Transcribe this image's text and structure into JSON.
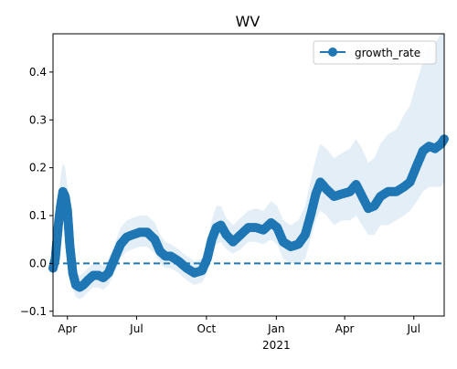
{
  "chart_data": {
    "type": "line",
    "title": "WV",
    "xlabel": "",
    "ylabel": "",
    "x_range": [
      "2020-03-13",
      "2021-08-10"
    ],
    "ylim": [
      -0.11,
      0.48
    ],
    "yticks": [
      -0.1,
      0.0,
      0.1,
      0.2,
      0.3,
      0.4
    ],
    "ytick_labels": [
      "−0.1",
      "0.0",
      "0.1",
      "0.2",
      "0.3",
      "0.4"
    ],
    "xticks": [
      {
        "date": "2020-04-01",
        "label": "Apr"
      },
      {
        "date": "2020-07-01",
        "label": "Jul"
      },
      {
        "date": "2020-10-01",
        "label": "Oct"
      },
      {
        "date": "2021-01-01",
        "label": "Jan"
      },
      {
        "date": "2021-04-01",
        "label": "Apr"
      },
      {
        "date": "2021-07-01",
        "label": "Jul"
      }
    ],
    "year_label": {
      "date": "2021-01-01",
      "label": "2021"
    },
    "grid": false,
    "legend": {
      "position": "top-right",
      "entries": [
        "growth_rate"
      ]
    },
    "colors": {
      "line": "#1f77b4",
      "band": "#1f77b4",
      "zero_line": "#1f77b4"
    },
    "reference_line": {
      "y": 0.0,
      "style": "dashed"
    },
    "series": [
      {
        "name": "growth_rate",
        "points": [
          [
            "2020-03-13",
            -0.01,
            -0.02,
            0.0
          ],
          [
            "2020-03-16",
            0.01,
            -0.01,
            0.03
          ],
          [
            "2020-03-20",
            0.08,
            0.04,
            0.12
          ],
          [
            "2020-03-23",
            0.12,
            0.07,
            0.18
          ],
          [
            "2020-03-26",
            0.15,
            0.1,
            0.21
          ],
          [
            "2020-03-29",
            0.14,
            0.09,
            0.2
          ],
          [
            "2020-04-01",
            0.11,
            0.06,
            0.16
          ],
          [
            "2020-04-04",
            0.04,
            0.0,
            0.09
          ],
          [
            "2020-04-08",
            -0.02,
            -0.05,
            0.02
          ],
          [
            "2020-04-12",
            -0.045,
            -0.07,
            -0.02
          ],
          [
            "2020-04-17",
            -0.05,
            -0.075,
            -0.025
          ],
          [
            "2020-04-22",
            -0.045,
            -0.07,
            -0.02
          ],
          [
            "2020-04-28",
            -0.035,
            -0.06,
            -0.01
          ],
          [
            "2020-05-05",
            -0.025,
            -0.05,
            0.0
          ],
          [
            "2020-05-12",
            -0.025,
            -0.05,
            0.0
          ],
          [
            "2020-05-18",
            -0.03,
            -0.055,
            -0.005
          ],
          [
            "2020-05-25",
            -0.02,
            -0.045,
            0.01
          ],
          [
            "2020-06-02",
            0.01,
            -0.02,
            0.04
          ],
          [
            "2020-06-10",
            0.04,
            0.01,
            0.075
          ],
          [
            "2020-06-18",
            0.055,
            0.025,
            0.09
          ],
          [
            "2020-06-26",
            0.06,
            0.03,
            0.095
          ],
          [
            "2020-07-05",
            0.065,
            0.035,
            0.1
          ],
          [
            "2020-07-15",
            0.065,
            0.035,
            0.1
          ],
          [
            "2020-07-25",
            0.05,
            0.02,
            0.085
          ],
          [
            "2020-08-01",
            0.025,
            0.0,
            0.06
          ],
          [
            "2020-08-08",
            0.015,
            -0.01,
            0.045
          ],
          [
            "2020-08-15",
            0.015,
            -0.01,
            0.04
          ],
          [
            "2020-08-25",
            0.005,
            -0.02,
            0.03
          ],
          [
            "2020-09-05",
            -0.01,
            -0.035,
            0.015
          ],
          [
            "2020-09-15",
            -0.02,
            -0.045,
            0.005
          ],
          [
            "2020-09-25",
            -0.015,
            -0.04,
            0.01
          ],
          [
            "2020-10-02",
            0.01,
            -0.02,
            0.045
          ],
          [
            "2020-10-08",
            0.05,
            0.02,
            0.09
          ],
          [
            "2020-10-14",
            0.075,
            0.04,
            0.12
          ],
          [
            "2020-10-20",
            0.08,
            0.045,
            0.12
          ],
          [
            "2020-10-27",
            0.06,
            0.03,
            0.095
          ],
          [
            "2020-11-05",
            0.045,
            0.02,
            0.08
          ],
          [
            "2020-11-15",
            0.06,
            0.03,
            0.095
          ],
          [
            "2020-11-25",
            0.075,
            0.045,
            0.11
          ],
          [
            "2020-12-05",
            0.075,
            0.045,
            0.115
          ],
          [
            "2020-12-15",
            0.07,
            0.04,
            0.11
          ],
          [
            "2020-12-25",
            0.085,
            0.05,
            0.13
          ],
          [
            "2021-01-02",
            0.075,
            0.04,
            0.12
          ],
          [
            "2021-01-10",
            0.045,
            0.01,
            0.09
          ],
          [
            "2021-01-20",
            0.035,
            0.0,
            0.08
          ],
          [
            "2021-01-30",
            0.04,
            0.0,
            0.09
          ],
          [
            "2021-02-08",
            0.06,
            0.01,
            0.12
          ],
          [
            "2021-02-15",
            0.1,
            0.05,
            0.17
          ],
          [
            "2021-02-22",
            0.145,
            0.09,
            0.22
          ],
          [
            "2021-02-28",
            0.17,
            0.11,
            0.25
          ],
          [
            "2021-03-08",
            0.155,
            0.1,
            0.24
          ],
          [
            "2021-03-18",
            0.14,
            0.08,
            0.22
          ],
          [
            "2021-03-28",
            0.145,
            0.09,
            0.23
          ],
          [
            "2021-04-08",
            0.15,
            0.09,
            0.24
          ],
          [
            "2021-04-16",
            0.165,
            0.1,
            0.26
          ],
          [
            "2021-04-24",
            0.14,
            0.08,
            0.24
          ],
          [
            "2021-05-02",
            0.115,
            0.06,
            0.21
          ],
          [
            "2021-05-10",
            0.12,
            0.06,
            0.22
          ],
          [
            "2021-05-18",
            0.14,
            0.08,
            0.25
          ],
          [
            "2021-05-28",
            0.15,
            0.08,
            0.27
          ],
          [
            "2021-06-08",
            0.15,
            0.09,
            0.28
          ],
          [
            "2021-06-18",
            0.16,
            0.1,
            0.31
          ],
          [
            "2021-06-26",
            0.17,
            0.11,
            0.33
          ],
          [
            "2021-07-05",
            0.205,
            0.13,
            0.38
          ],
          [
            "2021-07-13",
            0.235,
            0.15,
            0.42
          ],
          [
            "2021-07-21",
            0.245,
            0.16,
            0.45
          ],
          [
            "2021-07-29",
            0.24,
            0.16,
            0.46
          ],
          [
            "2021-08-06",
            0.25,
            0.16,
            0.48
          ],
          [
            "2021-08-10",
            0.26,
            0.17,
            0.48
          ]
        ]
      }
    ]
  }
}
